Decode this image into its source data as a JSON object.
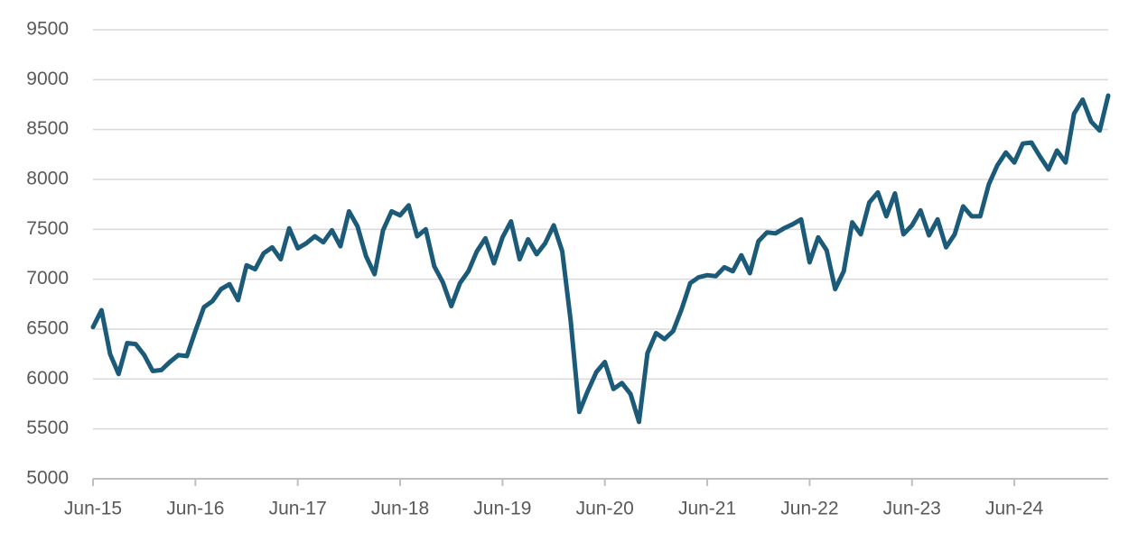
{
  "chart_data": {
    "type": "line",
    "color": "#1b5a78",
    "grid": true,
    "categories": [
      "Jun-15",
      null,
      null,
      null,
      null,
      null,
      null,
      null,
      null,
      null,
      null,
      null,
      "Jun-16",
      null,
      null,
      null,
      null,
      null,
      null,
      null,
      null,
      null,
      null,
      null,
      "Jun-17",
      null,
      null,
      null,
      null,
      null,
      null,
      null,
      null,
      null,
      null,
      null,
      "Jun-18",
      null,
      null,
      null,
      null,
      null,
      null,
      null,
      null,
      null,
      null,
      null,
      "Jun-19",
      null,
      null,
      null,
      null,
      null,
      null,
      null,
      null,
      null,
      null,
      null,
      "Jun-20",
      null,
      null,
      null,
      null,
      null,
      null,
      null,
      null,
      null,
      null,
      null,
      "Jun-21",
      null,
      null,
      null,
      null,
      null,
      null,
      null,
      null,
      null,
      null,
      null,
      "Jun-22",
      null,
      null,
      null,
      null,
      null,
      null,
      null,
      null,
      null,
      null,
      null,
      "Jun-23",
      null,
      null,
      null,
      null,
      null,
      null,
      null,
      null,
      null,
      null,
      null,
      "Jun-24",
      null,
      null,
      null,
      null,
      null,
      null,
      null,
      null,
      null,
      null,
      null
    ],
    "values": [
      6520,
      6690,
      6250,
      6050,
      6360,
      6350,
      6240,
      6080,
      6090,
      6170,
      6240,
      6230,
      6480,
      6720,
      6780,
      6900,
      6950,
      6790,
      7140,
      7100,
      7260,
      7320,
      7200,
      7510,
      7310,
      7360,
      7430,
      7370,
      7490,
      7330,
      7680,
      7530,
      7230,
      7050,
      7490,
      7680,
      7640,
      7740,
      7430,
      7500,
      7130,
      6970,
      6730,
      6960,
      7080,
      7280,
      7410,
      7160,
      7420,
      7580,
      7200,
      7400,
      7250,
      7360,
      7540,
      7280,
      6580,
      5670,
      5880,
      6070,
      6170,
      5900,
      5960,
      5850,
      5570,
      6260,
      6460,
      6400,
      6480,
      6700,
      6960,
      7020,
      7040,
      7030,
      7120,
      7080,
      7240,
      7060,
      7380,
      7470,
      7460,
      7510,
      7550,
      7600,
      7170,
      7420,
      7290,
      6900,
      7080,
      7570,
      7450,
      7770,
      7870,
      7630,
      7860,
      7450,
      7540,
      7690,
      7440,
      7600,
      7320,
      7450,
      7730,
      7630,
      7630,
      7950,
      8140,
      8270,
      8170,
      8360,
      8370,
      8230,
      8100,
      8290,
      8170,
      8660,
      8800,
      8580,
      8490,
      8840
    ],
    "ylim": [
      5000,
      9500
    ],
    "yticks": [
      5000,
      5500,
      6000,
      6500,
      7000,
      7500,
      8000,
      8500,
      9000,
      9500
    ]
  }
}
